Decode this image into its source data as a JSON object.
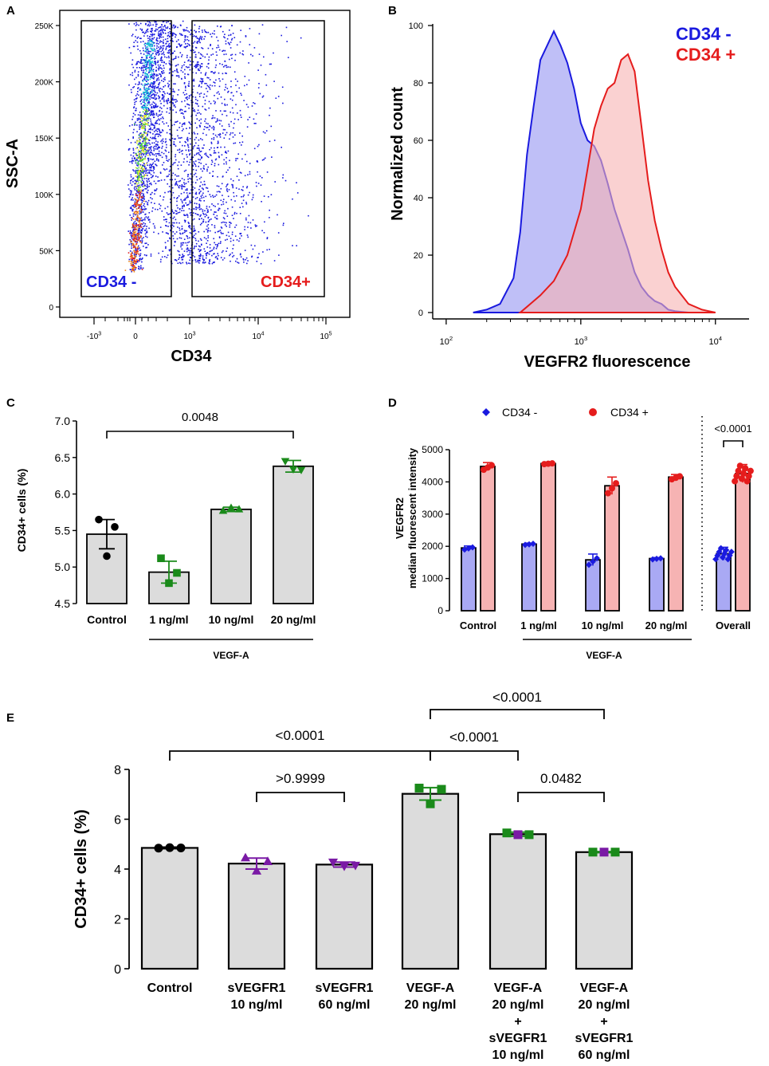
{
  "panel_labels": [
    "A",
    "B",
    "C",
    "D",
    "E"
  ],
  "colors": {
    "blue": "#1a1adf",
    "red": "#e51c1c",
    "green": "#1a8a1a",
    "purple": "#7a1aa5",
    "bar_gray": "#dcdcdc",
    "blue_fill": "#a9a9f4",
    "red_fill": "#f6b3b3"
  },
  "chart_data": [
    {
      "panel": "A",
      "type": "scatter",
      "title": "",
      "xlabel": "CD34",
      "ylabel": "SSC-A",
      "x_ticks": [
        "-10^3",
        "0",
        "10^3",
        "10^4",
        "10^5"
      ],
      "y_ticks": [
        "0",
        "50K",
        "100K",
        "150K",
        "200K",
        "250K"
      ],
      "y_values": [
        0,
        50000,
        100000,
        150000,
        200000,
        250000
      ],
      "gates": [
        {
          "name": "CD34 -",
          "color": "#1a1adf"
        },
        {
          "name": "CD34+",
          "color": "#e51c1c"
        }
      ]
    },
    {
      "panel": "B",
      "type": "area",
      "xlabel": "VEGFR2 fluorescence",
      "ylabel": "Normalized count",
      "x_ticks": [
        "10^2",
        "10^3",
        "10^4"
      ],
      "y_ticks": [
        0,
        20,
        40,
        60,
        80,
        100
      ],
      "ylim": [
        0,
        100
      ],
      "xlim_log10": [
        1.9,
        4.25
      ],
      "series": [
        {
          "name": "CD34 -",
          "color": "#1a1adf",
          "x_log10": [
            2.2,
            2.3,
            2.4,
            2.5,
            2.55,
            2.6,
            2.65,
            2.7,
            2.75,
            2.8,
            2.85,
            2.9,
            2.95,
            3.0,
            3.05,
            3.1,
            3.15,
            3.2,
            3.25,
            3.3,
            3.35,
            3.4,
            3.45,
            3.5,
            3.55,
            3.6,
            3.65,
            3.7,
            3.8
          ],
          "y": [
            0,
            1,
            3,
            12,
            28,
            55,
            72,
            88,
            93,
            98,
            93,
            87,
            78,
            66,
            60,
            58,
            53,
            45,
            36,
            29,
            22,
            14,
            9,
            6,
            4,
            3,
            1,
            0.5,
            0
          ]
        },
        {
          "name": "CD34 +",
          "color": "#e51c1c",
          "x_log10": [
            2.55,
            2.6,
            2.7,
            2.8,
            2.9,
            3.0,
            3.05,
            3.1,
            3.15,
            3.2,
            3.25,
            3.3,
            3.35,
            3.4,
            3.45,
            3.5,
            3.55,
            3.6,
            3.65,
            3.7,
            3.8,
            3.9,
            4.0
          ],
          "y": [
            0,
            2,
            6,
            11,
            20,
            36,
            50,
            64,
            72,
            78,
            80,
            88,
            90,
            84,
            65,
            46,
            32,
            22,
            14,
            9,
            3,
            1,
            0
          ]
        }
      ]
    },
    {
      "panel": "C",
      "type": "bar",
      "ylabel": "CD34+ cells (%)",
      "ylim": [
        4.5,
        7.0
      ],
      "y_ticks": [
        "4.5",
        "5.0",
        "5.5",
        "6.0",
        "6.5",
        "7.0"
      ],
      "categories": [
        "Control",
        "1 ng/ml",
        "10 ng/ml",
        "20 ng/ml"
      ],
      "values": [
        5.45,
        4.93,
        5.79,
        6.38
      ],
      "sem": [
        0.2,
        0.15,
        0.03,
        0.08
      ],
      "points": [
        [
          5.65,
          5.55,
          5.15
        ],
        [
          5.12,
          4.92,
          4.78
        ],
        [
          5.77,
          5.79,
          5.81
        ],
        [
          6.45,
          6.33,
          6.34
        ]
      ],
      "marker_colors": [
        "#000000",
        "#1a8a1a",
        "#1a8a1a",
        "#1a8a1a"
      ],
      "markers": [
        "circle",
        "square",
        "triangle-up",
        "triangle-down"
      ],
      "group_label": "VEGF-A",
      "comparisons": [
        {
          "from": 0,
          "to": 3,
          "label": "0.0048"
        }
      ]
    },
    {
      "panel": "D",
      "type": "bar",
      "ylabel_lines": [
        "VEGFR2",
        "median fluorescent intensity"
      ],
      "ylim": [
        0,
        5000
      ],
      "y_ticks": [
        "0",
        "1000",
        "2000",
        "3000",
        "4000",
        "5000"
      ],
      "categories": [
        "Control",
        "1 ng/ml",
        "10 ng/ml",
        "20 ng/ml",
        "Overall"
      ],
      "series": [
        {
          "name": "CD34 -",
          "color": "#1a1adf",
          "values": [
            1950,
            2070,
            1580,
            1620,
            1770
          ],
          "err": [
            60,
            30,
            180,
            30,
            200
          ]
        },
        {
          "name": "CD34 +",
          "color": "#e51c1c",
          "values": [
            4480,
            4570,
            3880,
            4150,
            4260
          ],
          "err": [
            120,
            20,
            270,
            80,
            280
          ]
        }
      ],
      "group_label": "VEGF-A",
      "comparisons": [
        {
          "label": "<0.0001"
        }
      ]
    },
    {
      "panel": "E",
      "type": "bar",
      "ylabel": "CD34+ cells (%)",
      "ylim": [
        0,
        8
      ],
      "y_ticks": [
        "0",
        "2",
        "4",
        "6",
        "8"
      ],
      "categories": [
        [
          "Control"
        ],
        [
          "sVEGFR1",
          "10 ng/ml"
        ],
        [
          "sVEGFR1",
          "60 ng/ml"
        ],
        [
          "VEGF-A",
          "20 ng/ml"
        ],
        [
          "VEGF-A",
          "20 ng/ml",
          "+",
          "sVEGFR1",
          "10 ng/ml"
        ],
        [
          "VEGF-A",
          "20 ng/ml",
          "+",
          "sVEGFR1",
          "60 ng/ml"
        ]
      ],
      "values": [
        4.85,
        4.22,
        4.18,
        7.02,
        5.4,
        4.68
      ],
      "sem": [
        0.03,
        0.22,
        0.1,
        0.25,
        0.08,
        0.02
      ],
      "points": [
        [
          4.84,
          4.85,
          4.86
        ],
        [
          4.45,
          4.3,
          3.92
        ],
        [
          4.28,
          4.15,
          4.12
        ],
        [
          7.25,
          7.2,
          6.62
        ],
        [
          5.45,
          5.38,
          5.38
        ],
        [
          4.68,
          4.68,
          4.68
        ]
      ],
      "marker_colors": [
        "#000000",
        "#7a1aa5",
        "#7a1aa5",
        "#1a8a1a",
        "#1a8a1a",
        "#1a8a1a"
      ],
      "markers": [
        "circle",
        "triangle-up",
        "triangle-down",
        "square",
        "square",
        "square"
      ],
      "comparisons": [
        {
          "from": 0,
          "to": 3,
          "label": "<0.0001"
        },
        {
          "from": 1,
          "to": 2,
          "label": ">0.9999"
        },
        {
          "from": 3,
          "to": 5,
          "label": "<0.0001"
        },
        {
          "from": 3,
          "to": 4,
          "label": "<0.0001"
        },
        {
          "from": 4,
          "to": 5,
          "label": "0.0482"
        }
      ]
    }
  ]
}
